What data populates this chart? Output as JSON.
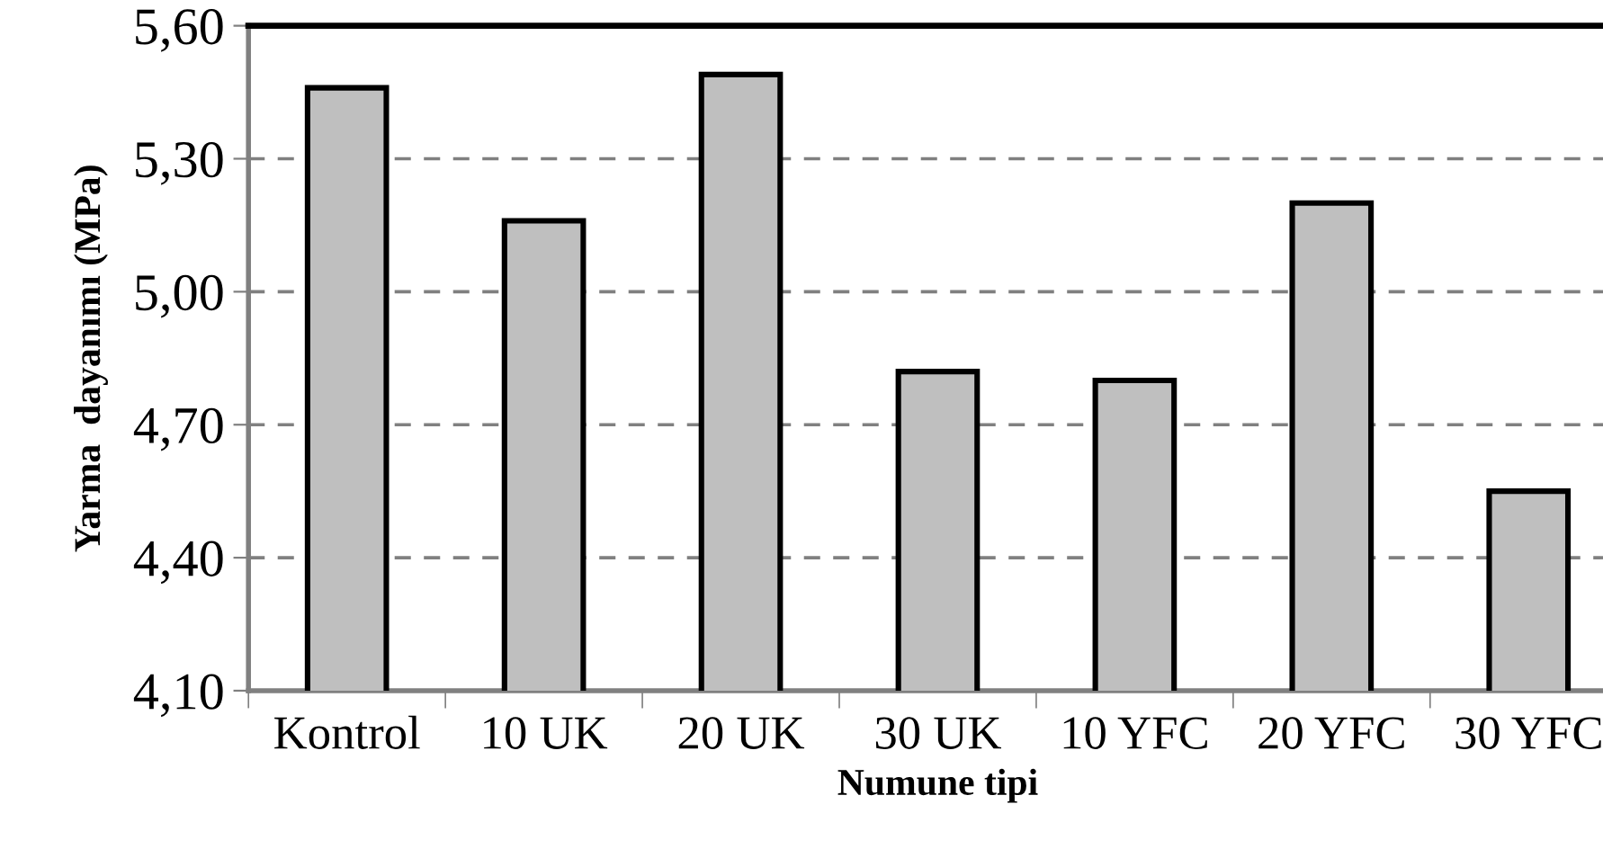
{
  "chart_data": {
    "type": "bar",
    "xlabel": "Numune tipi",
    "ylabel": "Yarma  dayanımı (MPa)",
    "categories": [
      "Kontrol",
      "10 UK",
      "20 UK",
      "30 UK",
      "10 YFC",
      "20 YFC",
      "30 YFC"
    ],
    "values": [
      5.46,
      5.16,
      5.49,
      4.82,
      4.8,
      5.2,
      4.55
    ],
    "color": "#bfbfbf",
    "ylim": [
      4.1,
      5.6
    ],
    "yticks": [
      {
        "value": 4.1,
        "label": "4,10"
      },
      {
        "value": 4.4,
        "label": "4,40"
      },
      {
        "value": 4.7,
        "label": "4,70"
      },
      {
        "value": 5.0,
        "label": "5,00"
      },
      {
        "value": 5.3,
        "label": "5,30"
      },
      {
        "value": 5.6,
        "label": "5,60"
      }
    ],
    "grid": "y",
    "line_style": "dashed"
  }
}
